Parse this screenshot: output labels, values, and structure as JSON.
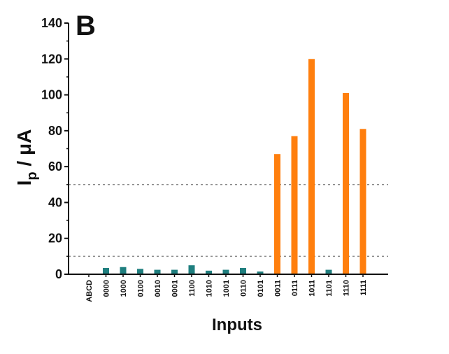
{
  "panel_label": "B",
  "chart_data": {
    "type": "bar",
    "title": "",
    "xlabel": "Inputs",
    "ylabel": "Ip / μA",
    "ylabel_main": "I",
    "ylabel_sub": "p",
    "ylabel_rest": " / μA",
    "ylim": [
      0,
      140
    ],
    "yticks": [
      "0",
      "20",
      "40",
      "60",
      "80",
      "100",
      "120",
      "140"
    ],
    "header_category": "ABCD",
    "categories": [
      "0000",
      "1000",
      "0100",
      "0010",
      "0001",
      "1100",
      "1010",
      "1001",
      "0110",
      "0101",
      "0011",
      "0111",
      "1011",
      "1101",
      "1110",
      "1111"
    ],
    "values": [
      3.5,
      4,
      3,
      2.5,
      2.5,
      5,
      2,
      2.5,
      3.5,
      1.5,
      67,
      77,
      120,
      2.5,
      101,
      81
    ],
    "colors": {
      "low": "#1f7f7f",
      "high": "#ff7f0e"
    },
    "threshold_lines": [
      10,
      50
    ],
    "grid": false
  }
}
